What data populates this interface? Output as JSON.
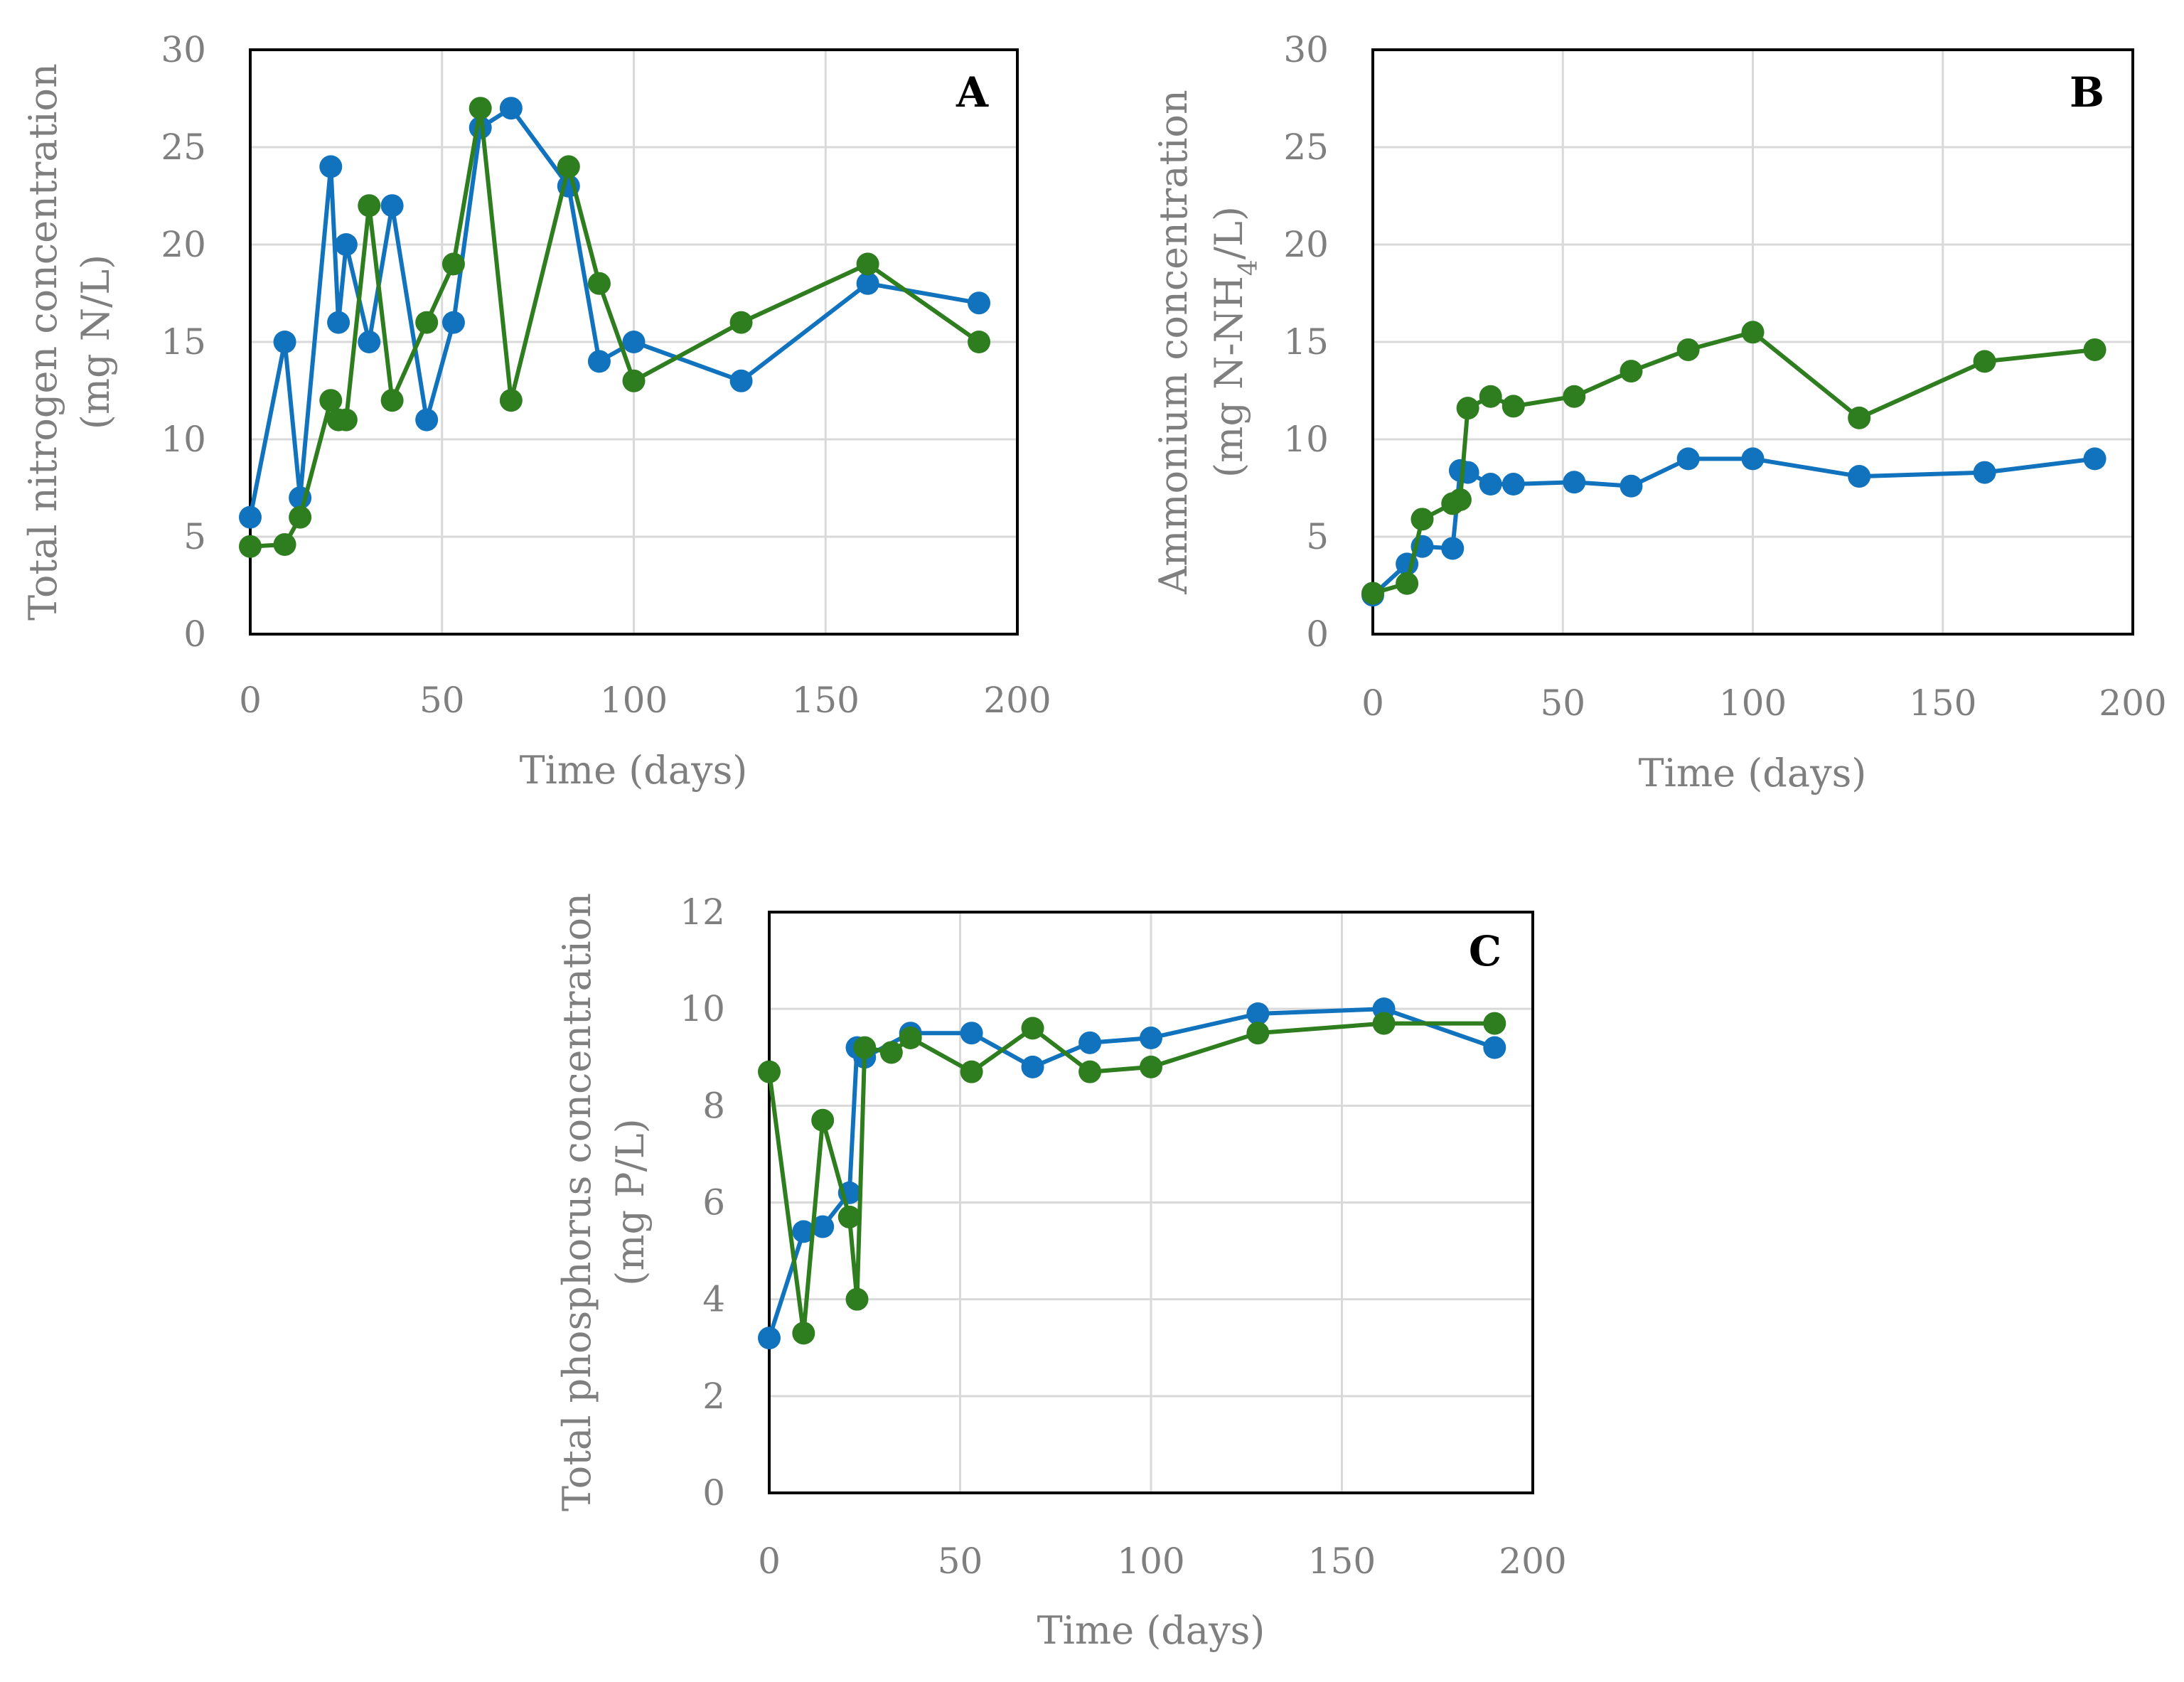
{
  "colors": {
    "blue": "#1172bd",
    "green": "#2e7d1f"
  },
  "chart_data": [
    {
      "id": "A",
      "type": "line",
      "panel_label": "A",
      "xlabel": "Time (days)",
      "ylabel_line1": "Total nitrogen concentration",
      "ylabel_line2": "(mg N/L)",
      "xlim": [
        0,
        200
      ],
      "ylim": [
        0,
        30
      ],
      "xticks": [
        0,
        50,
        100,
        150,
        200
      ],
      "yticks": [
        0,
        5,
        10,
        15,
        20,
        25,
        30
      ],
      "series": [
        {
          "name": "blue",
          "color": "#1172bd",
          "points": [
            [
              0,
              6
            ],
            [
              9,
              15
            ],
            [
              13,
              7
            ],
            [
              21,
              24
            ],
            [
              23,
              16
            ],
            [
              25,
              20
            ],
            [
              31,
              15
            ],
            [
              37,
              22
            ],
            [
              46,
              11
            ],
            [
              53,
              16
            ],
            [
              60,
              26
            ],
            [
              68,
              27
            ],
            [
              83,
              23
            ],
            [
              91,
              14
            ],
            [
              100,
              15
            ],
            [
              128,
              13
            ],
            [
              161,
              18
            ],
            [
              190,
              17
            ]
          ]
        },
        {
          "name": "green",
          "color": "#2e7d1f",
          "points": [
            [
              0,
              4.5
            ],
            [
              9,
              4.6
            ],
            [
              13,
              6
            ],
            [
              21,
              12
            ],
            [
              23,
              11
            ],
            [
              25,
              11
            ],
            [
              31,
              22
            ],
            [
              37,
              12
            ],
            [
              46,
              16
            ],
            [
              53,
              19
            ],
            [
              60,
              27
            ],
            [
              68,
              12
            ],
            [
              83,
              24
            ],
            [
              91,
              18
            ],
            [
              100,
              13
            ],
            [
              128,
              16
            ],
            [
              161,
              19
            ],
            [
              190,
              15
            ]
          ]
        }
      ]
    },
    {
      "id": "B",
      "type": "line",
      "panel_label": "B",
      "xlabel": "Time (days)",
      "ylabel_line1": "Ammonium concentration",
      "ylabel_line2_pre": "(mg N-NH",
      "ylabel_line2_sub": "4",
      "ylabel_line2_post": "/L)",
      "xlim": [
        0,
        200
      ],
      "ylim": [
        0,
        30
      ],
      "xticks": [
        0,
        50,
        100,
        150,
        200
      ],
      "yticks": [
        0,
        5,
        10,
        15,
        20,
        25,
        30
      ],
      "series": [
        {
          "name": "blue",
          "color": "#1172bd",
          "points": [
            [
              0,
              2
            ],
            [
              9,
              3.6
            ],
            [
              13,
              4.5
            ],
            [
              21,
              4.4
            ],
            [
              23,
              8.4
            ],
            [
              25,
              8.3
            ],
            [
              31,
              7.7
            ],
            [
              37,
              7.7
            ],
            [
              53,
              7.8
            ],
            [
              68,
              7.6
            ],
            [
              83,
              9
            ],
            [
              100,
              9
            ],
            [
              128,
              8.1
            ],
            [
              161,
              8.3
            ],
            [
              190,
              9
            ]
          ]
        },
        {
          "name": "green",
          "color": "#2e7d1f",
          "points": [
            [
              0,
              2.1
            ],
            [
              9,
              2.6
            ],
            [
              13,
              5.9
            ],
            [
              21,
              6.7
            ],
            [
              23,
              6.9
            ],
            [
              25,
              11.6
            ],
            [
              31,
              12.2
            ],
            [
              37,
              11.7
            ],
            [
              53,
              12.2
            ],
            [
              68,
              13.5
            ],
            [
              83,
              14.6
            ],
            [
              100,
              15.5
            ],
            [
              128,
              11.1
            ],
            [
              161,
              14
            ],
            [
              190,
              14.6
            ]
          ]
        }
      ]
    },
    {
      "id": "C",
      "type": "line",
      "panel_label": "C",
      "xlabel": "Time (days)",
      "ylabel_line1": "Total phosphorus concentration",
      "ylabel_line2": "(mg P/L)",
      "xlim": [
        0,
        200
      ],
      "ylim": [
        0,
        12
      ],
      "xticks": [
        0,
        50,
        100,
        150,
        200
      ],
      "yticks": [
        0,
        2,
        4,
        6,
        8,
        10,
        12
      ],
      "series": [
        {
          "name": "blue",
          "color": "#1172bd",
          "points": [
            [
              0,
              3.2
            ],
            [
              9,
              5.4
            ],
            [
              14,
              5.5
            ],
            [
              21,
              6.2
            ],
            [
              23,
              9.2
            ],
            [
              25,
              9
            ],
            [
              37,
              9.5
            ],
            [
              53,
              9.5
            ],
            [
              69,
              8.8
            ],
            [
              84,
              9.3
            ],
            [
              100,
              9.4
            ],
            [
              128,
              9.9
            ],
            [
              161,
              10
            ],
            [
              190,
              9.2
            ]
          ]
        },
        {
          "name": "green",
          "color": "#2e7d1f",
          "points": [
            [
              0,
              8.7
            ],
            [
              9,
              3.3
            ],
            [
              14,
              7.7
            ],
            [
              21,
              5.7
            ],
            [
              23,
              4
            ],
            [
              25,
              9.2
            ],
            [
              32,
              9.1
            ],
            [
              37,
              9.4
            ],
            [
              53,
              8.7
            ],
            [
              69,
              9.6
            ],
            [
              84,
              8.7
            ],
            [
              100,
              8.8
            ],
            [
              128,
              9.5
            ],
            [
              161,
              9.7
            ],
            [
              190,
              9.7
            ]
          ]
        }
      ]
    }
  ]
}
